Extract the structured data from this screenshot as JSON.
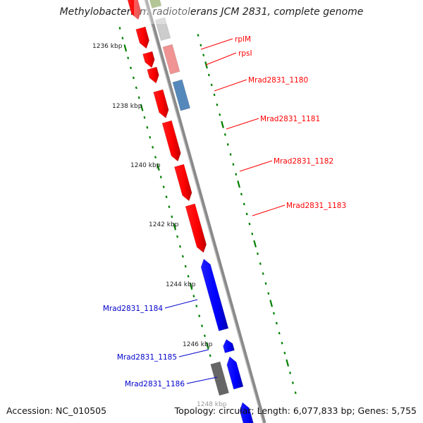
{
  "title": "Methylobacterium radiotolerans JCM 2831, complete genome",
  "footer": {
    "accession": "Accession: NC_010505",
    "summary": "Topology: circular; Length: 6,077,833 bp; Genes: 5,755"
  },
  "colors": {
    "forward_gene": "#ff0000",
    "reverse_gene": "#0000ff",
    "rrna_blue": "#5588bb",
    "pseudo_pink": "#ee8888",
    "gray_feature": "#666666",
    "tick": "#008000",
    "backbone": "#888888"
  },
  "ticks": [
    "1236 kbp",
    "1238 kbp",
    "1240 kbp",
    "1242 kbp",
    "1244 kbp",
    "1246 kbp",
    "1248 kbp"
  ],
  "gene_labels": [
    {
      "name": "rplM",
      "side": "right",
      "color": "#ff0000"
    },
    {
      "name": "rpsI",
      "side": "right",
      "color": "#ff0000"
    },
    {
      "name": "Mrad2831_1180",
      "side": "right",
      "color": "#ff0000"
    },
    {
      "name": "Mrad2831_1181",
      "side": "right",
      "color": "#ff0000"
    },
    {
      "name": "Mrad2831_1182",
      "side": "right",
      "color": "#ff0000"
    },
    {
      "name": "Mrad2831_1183",
      "side": "right",
      "color": "#ff0000"
    },
    {
      "name": "Mrad2831_1184",
      "side": "left",
      "color": "#0000cc"
    },
    {
      "name": "Mrad2831_1185",
      "side": "left",
      "color": "#0000cc"
    },
    {
      "name": "Mrad2831_1186",
      "side": "left",
      "color": "#0000cc"
    }
  ]
}
